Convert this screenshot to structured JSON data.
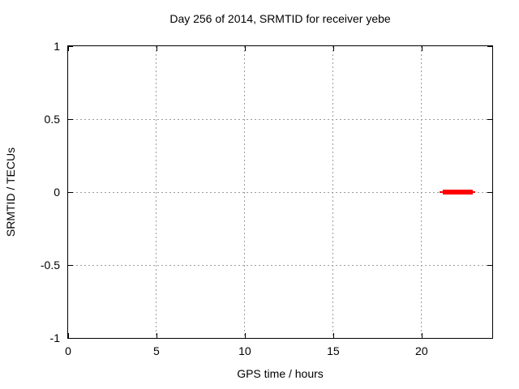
{
  "window": {
    "background_color": "#ffffff"
  },
  "chart_data": {
    "type": "line",
    "title": "Day 256 of 2014, SRMTID for receiver yebe",
    "xlabel": "GPS time / hours",
    "ylabel": "SRMTID / TECUs",
    "xlim": [
      0,
      24
    ],
    "ylim": [
      -1,
      1
    ],
    "xticks": [
      0,
      5,
      10,
      15,
      20
    ],
    "yticks": [
      -1,
      -0.5,
      0,
      0.5,
      1
    ],
    "grid": true,
    "grid_style": "dashed",
    "legend": "none",
    "colors": {
      "series": "#ff0000",
      "grid": "#9c9c9c",
      "border": "#000000",
      "text": "#000000",
      "background": "#ffffff"
    },
    "series": [
      {
        "name": "SRMTID",
        "color": "#ff0000",
        "style": "horizontal-segment",
        "segments": [
          {
            "x_start": 21.0,
            "x_end": 23.05,
            "y": 0,
            "thickness_px": 2
          },
          {
            "x_start": 21.2,
            "x_end": 22.9,
            "y": 0,
            "thickness_px": 6
          }
        ]
      }
    ]
  }
}
